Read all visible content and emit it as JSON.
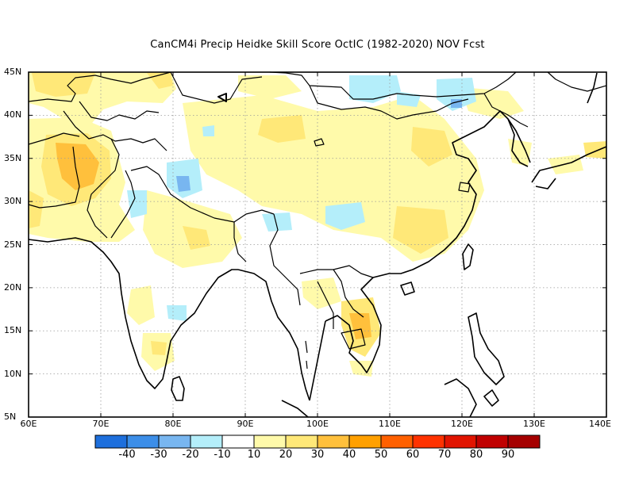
{
  "title": "CanCM4i Precip Heidke Skill Score OctIC (1982-2020) NOV Fcst",
  "map": {
    "lon_range": [
      60,
      140
    ],
    "lat_range": [
      5,
      45
    ],
    "lat_labels": [
      "45N",
      "40N",
      "35N",
      "30N",
      "25N",
      "20N",
      "15N",
      "10N",
      "5N"
    ],
    "lon_labels": [
      "60E",
      "70E",
      "80E",
      "90E",
      "100E",
      "110E",
      "120E",
      "130E",
      "140E"
    ],
    "grid": "dotted"
  },
  "colorbar": {
    "colors": [
      "#1e6fdc",
      "#3c8ee8",
      "#78b6f0",
      "#b4eefa",
      "#ffffff",
      "#fffaaa",
      "#ffe878",
      "#ffc03c",
      "#ffa000",
      "#ff6000",
      "#ff3200",
      "#e11400",
      "#c00000",
      "#a50000"
    ],
    "labels": [
      "-40",
      "-30",
      "-20",
      "-10",
      "10",
      "20",
      "30",
      "40",
      "50",
      "60",
      "70",
      "80",
      "90"
    ]
  }
}
